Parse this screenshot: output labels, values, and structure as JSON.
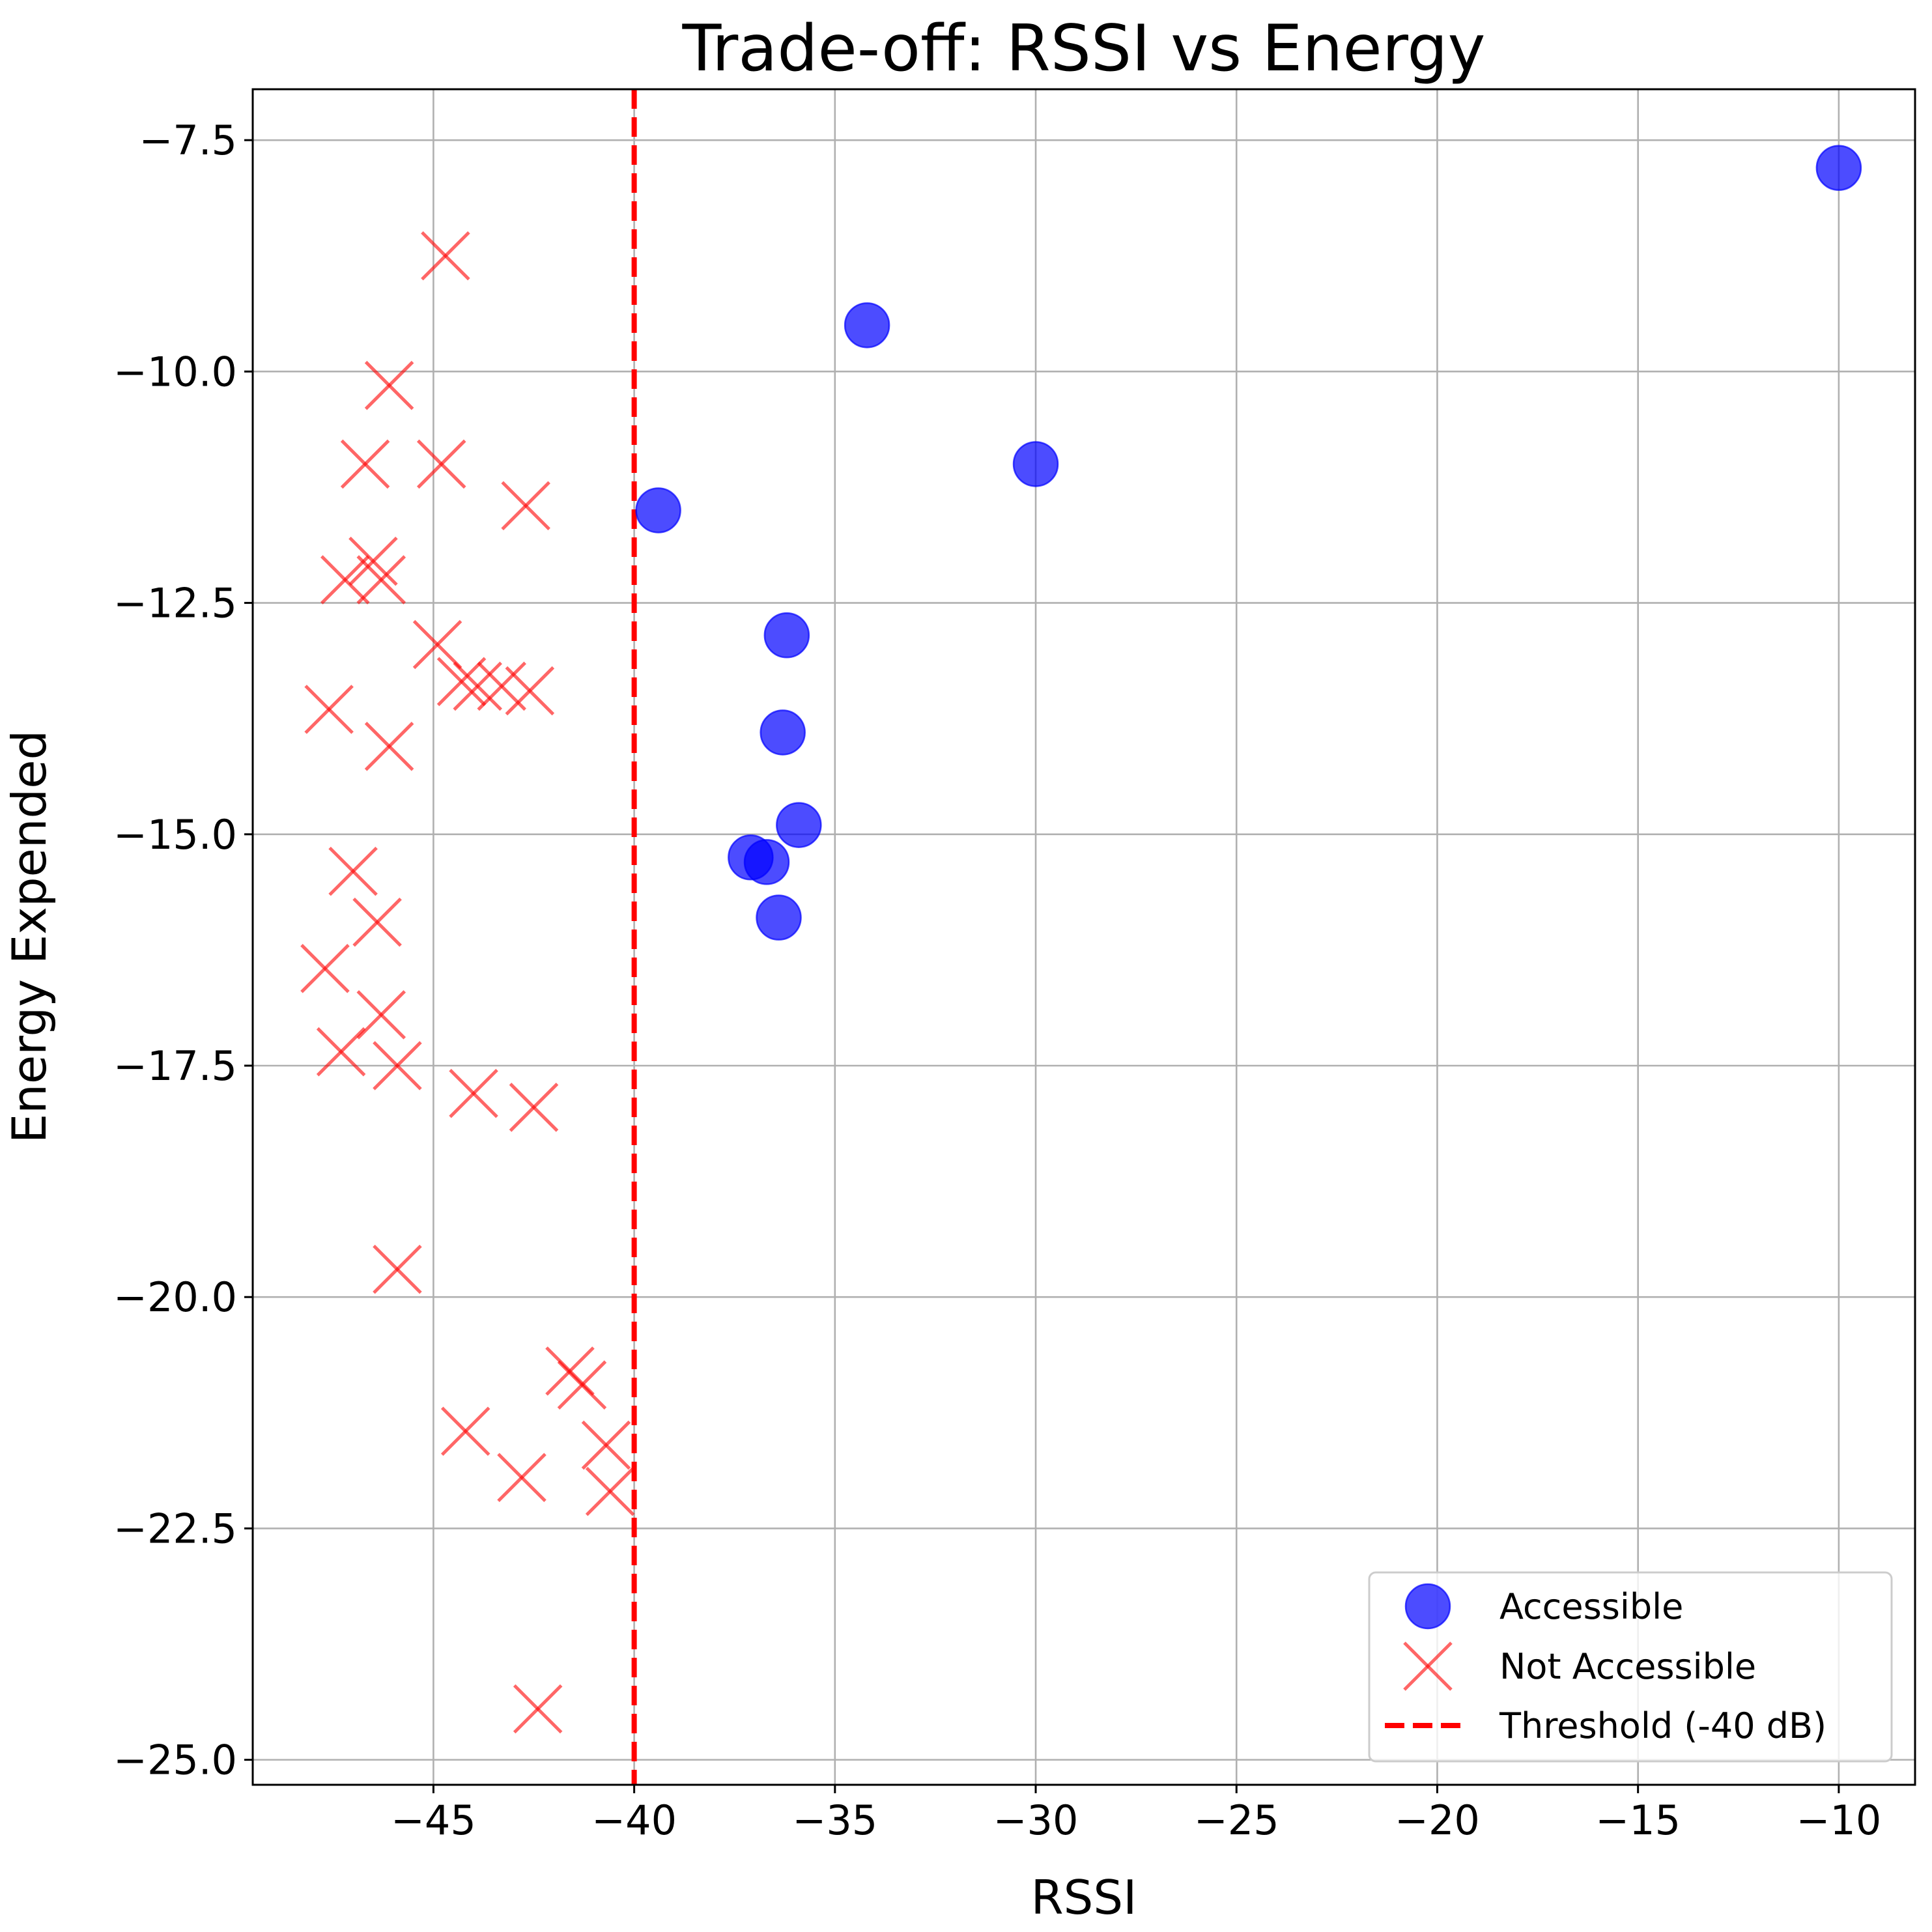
{
  "chart_data": {
    "type": "scatter",
    "title": "Trade-off: RSSI vs Energy",
    "xlabel": "RSSI",
    "ylabel": "Energy Expended",
    "xlim": [
      -49.5,
      -8.1
    ],
    "ylim": [
      -25.27,
      -6.95
    ],
    "xticks": [
      -45,
      -40,
      -35,
      -30,
      -25,
      -20,
      -15,
      -10
    ],
    "yticks": [
      -7.5,
      -10.0,
      -12.5,
      -15.0,
      -17.5,
      -20.0,
      -22.5,
      -25.0
    ],
    "grid": true,
    "legend_position": "lower-right",
    "threshold": {
      "name": "Threshold (-40 dB)",
      "x": -40,
      "color": "#ff0000",
      "style": "dashed"
    },
    "series": [
      {
        "name": "Accessible",
        "marker": "circle",
        "color": "#0000ff",
        "points": [
          {
            "x": -10.0,
            "y": -7.8
          },
          {
            "x": -34.2,
            "y": -9.5
          },
          {
            "x": -30.0,
            "y": -11.0
          },
          {
            "x": -39.4,
            "y": -11.5
          },
          {
            "x": -36.2,
            "y": -12.85
          },
          {
            "x": -36.3,
            "y": -13.9
          },
          {
            "x": -35.9,
            "y": -14.9
          },
          {
            "x": -37.1,
            "y": -15.25
          },
          {
            "x": -36.7,
            "y": -15.3
          },
          {
            "x": -36.4,
            "y": -15.9
          }
        ]
      },
      {
        "name": "Not Accessible",
        "marker": "x",
        "color": "#ff5555",
        "points": [
          {
            "x": -44.7,
            "y": -8.75
          },
          {
            "x": -46.1,
            "y": -10.15
          },
          {
            "x": -46.7,
            "y": -11.0
          },
          {
            "x": -44.8,
            "y": -11.0
          },
          {
            "x": -42.7,
            "y": -11.45
          },
          {
            "x": -46.5,
            "y": -12.05
          },
          {
            "x": -46.3,
            "y": -12.25
          },
          {
            "x": -47.2,
            "y": -12.25
          },
          {
            "x": -44.9,
            "y": -12.95
          },
          {
            "x": -44.3,
            "y": -13.35
          },
          {
            "x": -43.9,
            "y": -13.4
          },
          {
            "x": -43.3,
            "y": -13.4
          },
          {
            "x": -42.6,
            "y": -13.45
          },
          {
            "x": -47.6,
            "y": -13.65
          },
          {
            "x": -46.1,
            "y": -14.05
          },
          {
            "x": -47.0,
            "y": -15.4
          },
          {
            "x": -46.4,
            "y": -15.95
          },
          {
            "x": -47.7,
            "y": -16.45
          },
          {
            "x": -46.3,
            "y": -16.95
          },
          {
            "x": -47.3,
            "y": -17.35
          },
          {
            "x": -45.9,
            "y": -17.5
          },
          {
            "x": -44.0,
            "y": -17.8
          },
          {
            "x": -42.5,
            "y": -17.95
          },
          {
            "x": -45.9,
            "y": -19.7
          },
          {
            "x": -41.6,
            "y": -20.8
          },
          {
            "x": -41.3,
            "y": -20.95
          },
          {
            "x": -44.2,
            "y": -21.45
          },
          {
            "x": -40.7,
            "y": -21.6
          },
          {
            "x": -42.8,
            "y": -21.95
          },
          {
            "x": -40.6,
            "y": -22.1
          },
          {
            "x": -42.4,
            "y": -24.45
          }
        ]
      }
    ]
  }
}
